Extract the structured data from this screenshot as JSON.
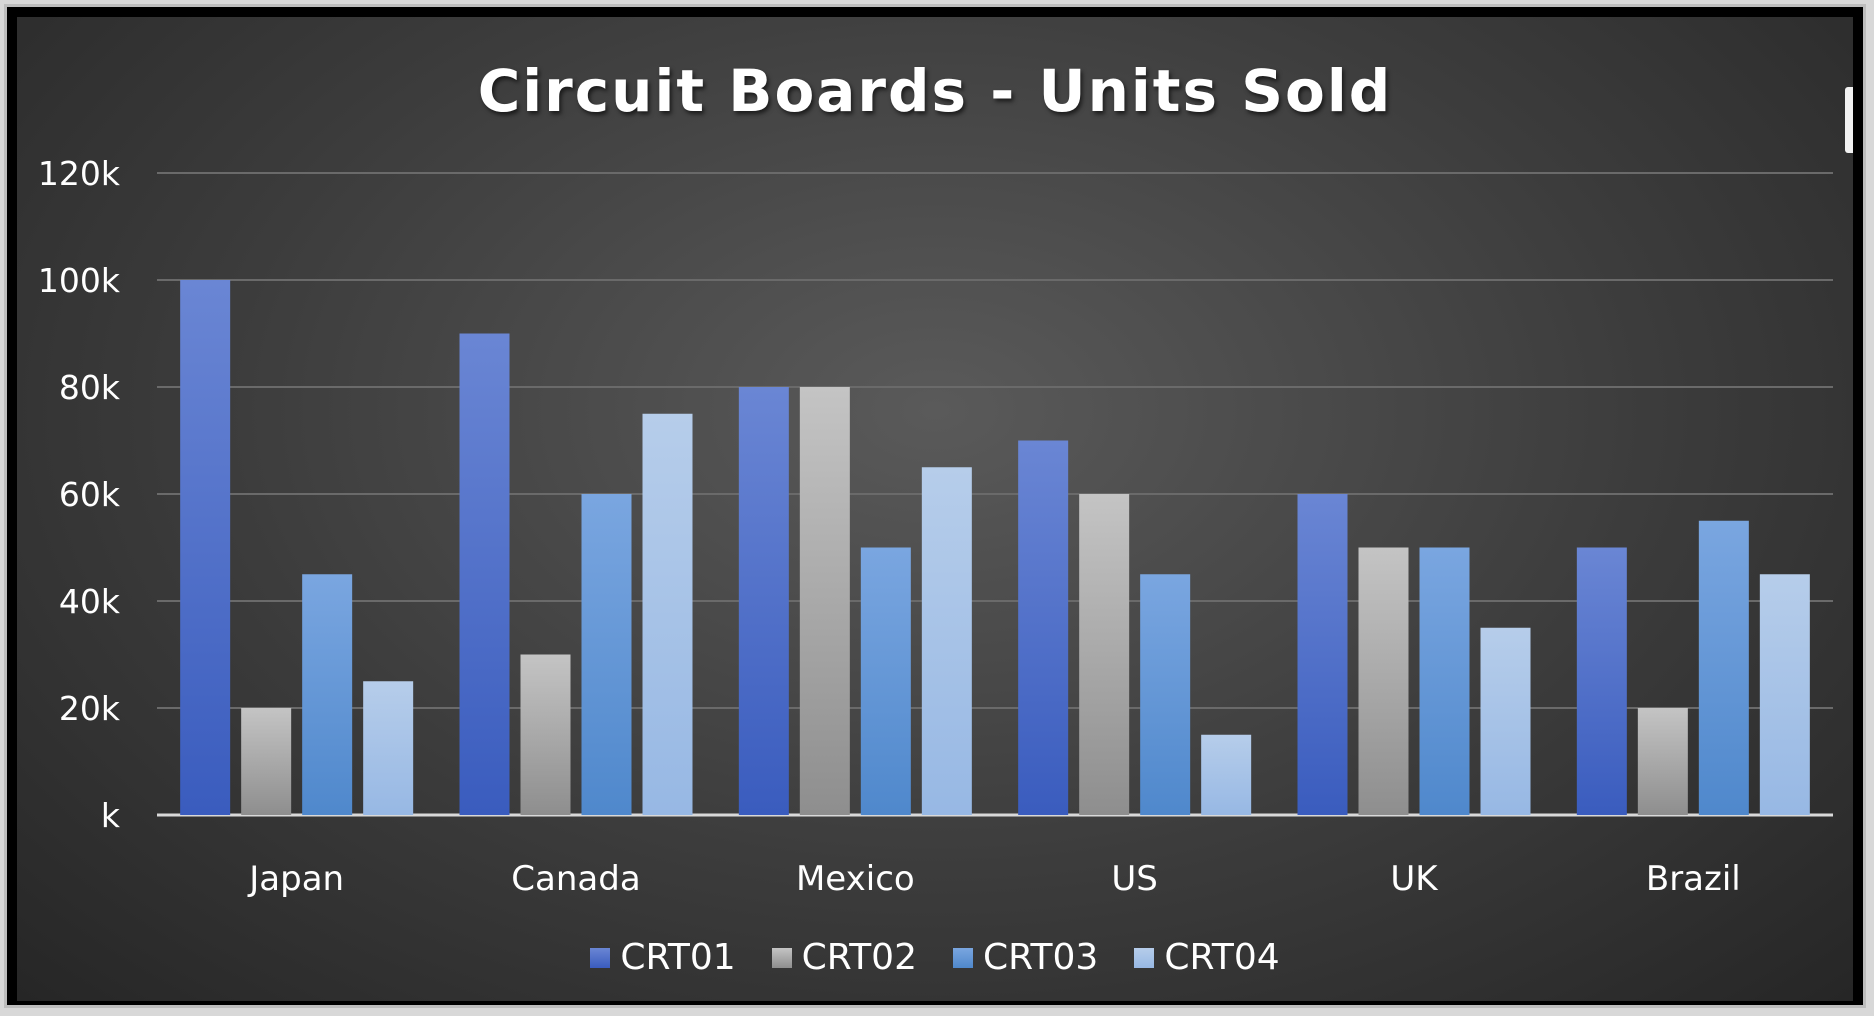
{
  "chart_data": {
    "type": "bar",
    "title": "Circuit Boards - Units Sold",
    "xlabel": "",
    "ylabel": "",
    "categories": [
      "Japan",
      "Canada",
      "Mexico",
      "US",
      "UK",
      "Brazil"
    ],
    "series": [
      {
        "name": "CRT01",
        "values": [
          100000,
          90000,
          80000,
          70000,
          60000,
          50000
        ],
        "color_top": "#6a86d4",
        "color_bottom": "#3a5cbe"
      },
      {
        "name": "CRT02",
        "values": [
          20000,
          30000,
          80000,
          60000,
          50000,
          20000
        ],
        "color_top": "#c4c4c4",
        "color_bottom": "#8e8e8e"
      },
      {
        "name": "CRT03",
        "values": [
          45000,
          60000,
          50000,
          45000,
          50000,
          55000
        ],
        "color_top": "#7aa6e0",
        "color_bottom": "#4f88cc"
      },
      {
        "name": "CRT04",
        "values": [
          25000,
          75000,
          65000,
          15000,
          35000,
          45000
        ],
        "color_top": "#b6cdea",
        "color_bottom": "#97b8e4"
      }
    ],
    "ylim": [
      0,
      120000
    ],
    "yticks": [
      0,
      20000,
      40000,
      60000,
      80000,
      100000,
      120000
    ],
    "ytick_labels": [
      "k",
      "20k",
      "40k",
      "60k",
      "80k",
      "100k",
      "120k"
    ],
    "grid": true,
    "legend_position": "bottom"
  }
}
